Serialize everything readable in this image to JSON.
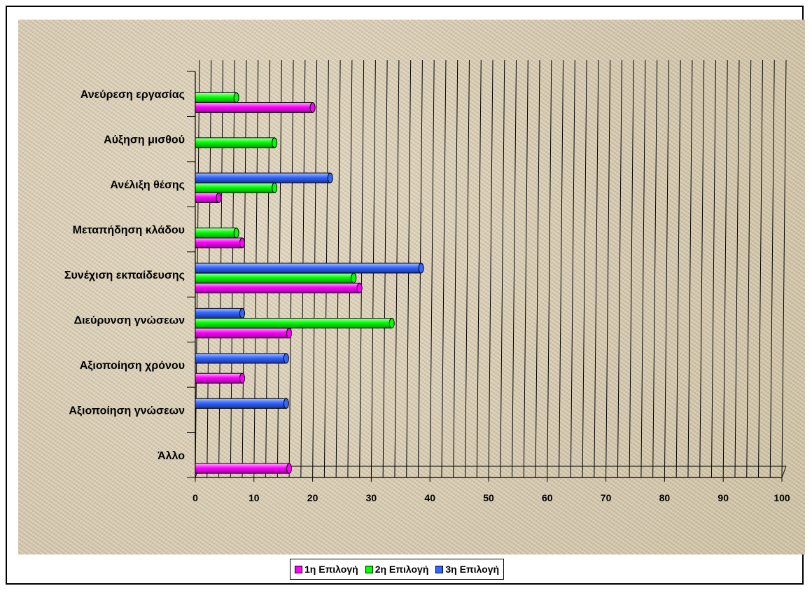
{
  "chart_data": {
    "type": "bar",
    "orientation": "horizontal",
    "title": "",
    "xlabel": "",
    "ylabel": "",
    "xlim": [
      0,
      100
    ],
    "x_ticks": [
      "0",
      "10",
      "20",
      "30",
      "40",
      "50",
      "60",
      "70",
      "80",
      "90",
      "100"
    ],
    "grid": "vertical",
    "legend_position": "bottom",
    "categories": [
      "Ανεύρεση εργασίας",
      "Αύξηση μισθού",
      "Ανέλιξη θέσης",
      "Μεταπήδηση κλάδου",
      "Συνέχιση εκπαίδευσης",
      "Διεύρυνση γνώσεων",
      "Αξιοποίηση χρόνου",
      "Αξιοποίηση γνώσεων",
      "Άλλο"
    ],
    "series": [
      {
        "name": "1η Επιλογή",
        "color": "#ff00ff",
        "values": [
          20,
          0,
          4,
          8,
          28,
          16,
          8,
          0,
          16
        ]
      },
      {
        "name": "2η Επιλογή",
        "color": "#00ff00",
        "values": [
          7,
          13.5,
          13.5,
          7,
          27,
          33.5,
          0,
          0,
          0
        ]
      },
      {
        "name": "3η Επιλογή",
        "color": "#3366ff",
        "values": [
          0,
          0,
          23,
          0,
          38.5,
          8,
          15.5,
          15.5,
          0
        ]
      }
    ]
  }
}
